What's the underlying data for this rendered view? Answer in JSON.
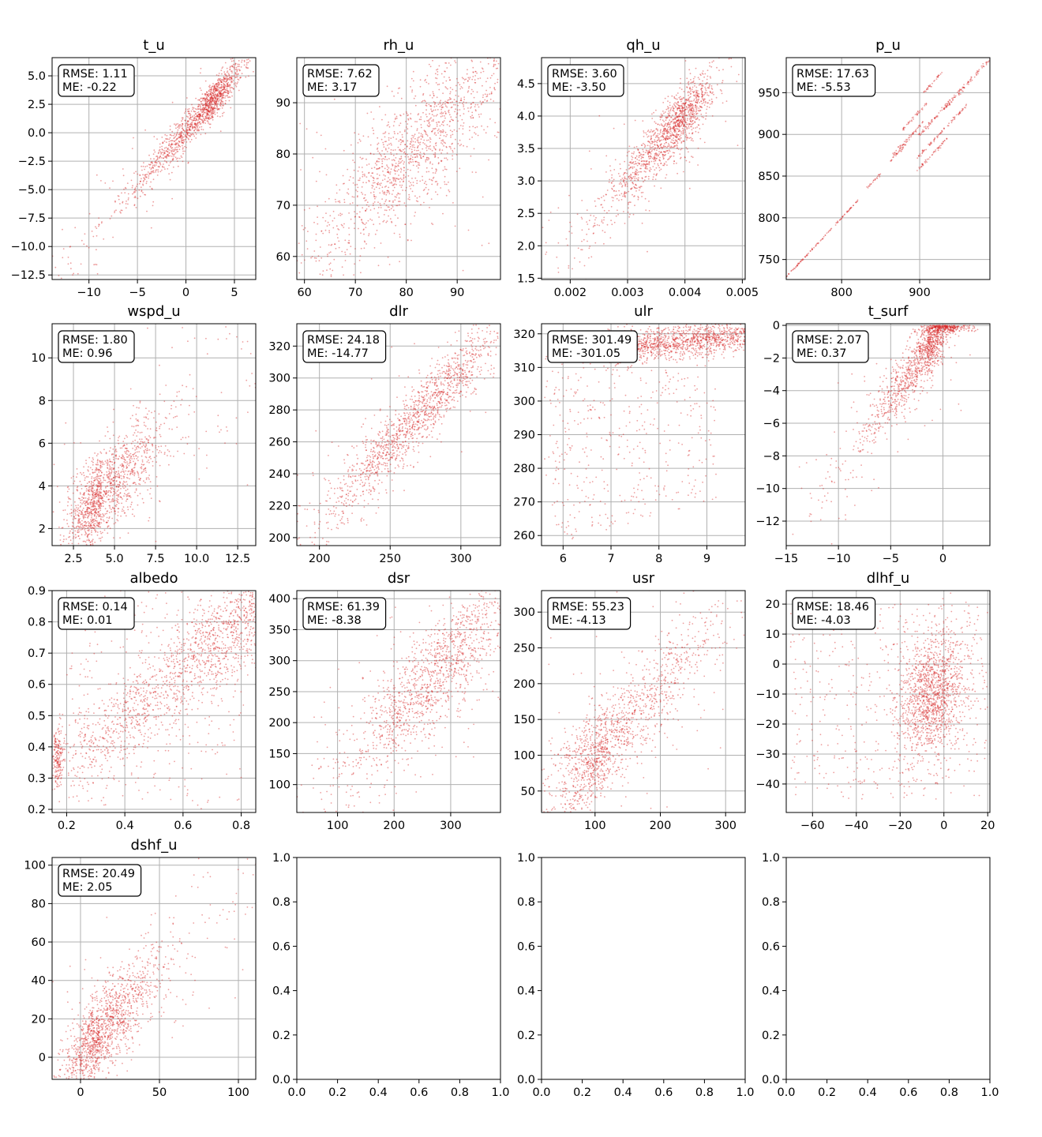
{
  "colors": {
    "points": "#d62728",
    "grid": "#b0b0b0",
    "frame": "#000000"
  },
  "chart_data": [
    {
      "type": "scatter",
      "title": "t_u",
      "grid": true,
      "xlim": [
        -13.8,
        7.2
      ],
      "ylim": [
        -12.9,
        6.6
      ],
      "xticks": [
        "-10",
        "-5",
        "0",
        "5"
      ],
      "xtick_values": [
        -10,
        -5,
        0,
        5
      ],
      "yticks": [
        "-12.5",
        "-10.0",
        "-7.5",
        "-5.0",
        "-2.5",
        "0.0",
        "2.5",
        "5.0"
      ],
      "ytick_values": [
        -12.5,
        -10,
        -7.5,
        -5,
        -2.5,
        0,
        2.5,
        5
      ],
      "rmse_label": "RMSE: 1.11",
      "me_label": "ME: -0.22",
      "points": {
        "slope": 0.95,
        "intercept": 0.2,
        "noise": 0.8,
        "x_center": 2.0,
        "x_spread": 3.5,
        "x_skew": "left"
      }
    },
    {
      "type": "scatter",
      "title": "rh_u",
      "grid": true,
      "xlim": [
        58.5,
        98.5
      ],
      "ylim": [
        55.5,
        98.8
      ],
      "xticks": [
        "60",
        "70",
        "80",
        "90"
      ],
      "xtick_values": [
        60,
        70,
        80,
        90
      ],
      "yticks": [
        "60",
        "70",
        "80",
        "90"
      ],
      "ytick_values": [
        60,
        70,
        80,
        90
      ],
      "rmse_label": "RMSE: 7.62",
      "me_label": "ME: 3.17",
      "points": {
        "slope": 0.95,
        "intercept": 3.5,
        "noise": 6.0,
        "x_center": 82,
        "x_spread": 10,
        "x_skew": "none"
      }
    },
    {
      "type": "scatter",
      "title": "qh_u",
      "grid": true,
      "xlim": [
        0.0015,
        0.00505
      ],
      "ylim": [
        1.48,
        4.9
      ],
      "xticks": [
        "0.002",
        "0.003",
        "0.004",
        "0.005"
      ],
      "xtick_values": [
        0.002,
        0.003,
        0.004,
        0.005
      ],
      "yticks": [
        "1.5",
        "2.0",
        "2.5",
        "3.0",
        "3.5",
        "4.0",
        "4.5"
      ],
      "ytick_values": [
        1.5,
        2,
        2.5,
        3,
        3.5,
        4,
        4.5
      ],
      "rmse_label": "RMSE: 3.60",
      "me_label": "ME: -3.50",
      "points": {
        "slope": 1000,
        "intercept": 0.0,
        "noise": 0.22,
        "x_center": 0.0038,
        "x_spread": 0.0006,
        "x_skew": "left"
      }
    },
    {
      "type": "scatter",
      "title": "p_u",
      "grid": true,
      "xlim": [
        729,
        990
      ],
      "ylim": [
        726,
        992
      ],
      "xticks": [
        "800",
        "900"
      ],
      "xtick_values": [
        800,
        900
      ],
      "yticks": [
        "750",
        "800",
        "850",
        "900",
        "950"
      ],
      "ytick_values": [
        750,
        800,
        850,
        900,
        950
      ],
      "rmse_label": "RMSE: 17.63",
      "me_label": "ME: -5.53",
      "points": {
        "mode": "segments",
        "segments": [
          [
            729,
            822,
            0,
            0.5
          ],
          [
            832,
            850,
            3,
            0.8
          ],
          [
            860,
            885,
            6,
            1
          ],
          [
            865,
            905,
            10,
            1.2
          ],
          [
            878,
            910,
            28,
            1
          ],
          [
            905,
            930,
            45,
            1
          ],
          [
            898,
            960,
            0,
            1.5
          ],
          [
            930,
            990,
            0,
            1.5
          ],
          [
            895,
            935,
            -40,
            1
          ],
          [
            895,
            960,
            -25,
            1
          ]
        ]
      }
    },
    {
      "type": "scatter",
      "title": "wspd_u",
      "grid": true,
      "xlim": [
        1.2,
        13.6
      ],
      "ylim": [
        1.2,
        11.6
      ],
      "xticks": [
        "2.5",
        "5.0",
        "7.5",
        "10.0",
        "12.5"
      ],
      "xtick_values": [
        2.5,
        5,
        7.5,
        10,
        12.5
      ],
      "yticks": [
        "2",
        "4",
        "6",
        "8",
        "10"
      ],
      "ytick_values": [
        2,
        4,
        6,
        8,
        10
      ],
      "rmse_label": "RMSE: 1.80",
      "me_label": "ME: 0.96",
      "points": {
        "slope": 0.72,
        "intercept": 0.5,
        "noise": 1.0,
        "x_center": 4.2,
        "x_spread": 1.9,
        "x_skew": "right"
      }
    },
    {
      "type": "scatter",
      "title": "dlr",
      "grid": true,
      "xlim": [
        184,
        328
      ],
      "ylim": [
        195,
        334
      ],
      "xticks": [
        "200",
        "250",
        "300"
      ],
      "xtick_values": [
        200,
        250,
        300
      ],
      "yticks": [
        "200",
        "220",
        "240",
        "260",
        "280",
        "300",
        "320"
      ],
      "ytick_values": [
        200,
        220,
        240,
        260,
        280,
        300,
        320
      ],
      "rmse_label": "RMSE: 24.18",
      "me_label": "ME: -14.77",
      "points": {
        "slope": 0.95,
        "intercept": 20,
        "noise": 10,
        "x_center": 270,
        "x_spread": 32,
        "x_skew": "none"
      }
    },
    {
      "type": "scatter",
      "title": "ulr",
      "grid": true,
      "xlim": [
        5.55,
        9.8
      ],
      "ylim": [
        257,
        323
      ],
      "xticks": [
        "6",
        "7",
        "8",
        "9"
      ],
      "xtick_values": [
        6,
        7,
        8,
        9
      ],
      "yticks": [
        "260",
        "270",
        "280",
        "290",
        "300",
        "310",
        "320"
      ],
      "ytick_values": [
        260,
        270,
        280,
        290,
        300,
        310,
        320
      ],
      "rmse_label": "RMSE: 301.49",
      "me_label": "ME: -301.05",
      "points": {
        "mode": "ulr"
      }
    },
    {
      "type": "scatter",
      "title": "t_surf",
      "grid": true,
      "xlim": [
        -15,
        4.5
      ],
      "ylim": [
        -13.5,
        0.1
      ],
      "xticks": [
        "-15",
        "-10",
        "-5",
        "0"
      ],
      "xtick_values": [
        -15,
        -10,
        -5,
        0
      ],
      "yticks": [
        "-12",
        "-10",
        "-8",
        "-6",
        "-4",
        "-2",
        "0"
      ],
      "ytick_values": [
        -12,
        -10,
        -8,
        -6,
        -4,
        -2,
        0
      ],
      "rmse_label": "RMSE: 2.07",
      "me_label": "ME: 0.37",
      "points": {
        "slope": 0.9,
        "intercept": 0.0,
        "noise": 0.9,
        "x_center": -1.5,
        "x_spread": 2.8,
        "x_skew": "left",
        "y_cap": 0
      }
    },
    {
      "type": "scatter",
      "title": "albedo",
      "grid": true,
      "xlim": [
        0.15,
        0.85
      ],
      "ylim": [
        0.19,
        0.9
      ],
      "xticks": [
        "0.2",
        "0.4",
        "0.6",
        "0.8"
      ],
      "xtick_values": [
        0.2,
        0.4,
        0.6,
        0.8
      ],
      "yticks": [
        "0.2",
        "0.3",
        "0.4",
        "0.5",
        "0.6",
        "0.7",
        "0.8",
        "0.9"
      ],
      "ytick_values": [
        0.2,
        0.3,
        0.4,
        0.5,
        0.6,
        0.7,
        0.8,
        0.9
      ],
      "rmse_label": "RMSE: 0.14",
      "me_label": "ME: 0.01",
      "points": {
        "mode": "albedo"
      }
    },
    {
      "type": "scatter",
      "title": "dsr",
      "grid": true,
      "xlim": [
        28,
        388
      ],
      "ylim": [
        55,
        413
      ],
      "xticks": [
        "100",
        "200",
        "300"
      ],
      "xtick_values": [
        100,
        200,
        300
      ],
      "yticks": [
        "100",
        "150",
        "200",
        "250",
        "300",
        "350",
        "400"
      ],
      "ytick_values": [
        100,
        150,
        200,
        250,
        300,
        350,
        400
      ],
      "rmse_label": "RMSE: 61.39",
      "me_label": "ME: -8.38",
      "points": {
        "slope": 0.95,
        "intercept": 15,
        "noise": 45,
        "x_center": 270,
        "x_spread": 80,
        "x_skew": "none"
      }
    },
    {
      "type": "scatter",
      "title": "usr",
      "grid": true,
      "xlim": [
        18,
        330
      ],
      "ylim": [
        20,
        330
      ],
      "xticks": [
        "100",
        "200",
        "300"
      ],
      "xtick_values": [
        100,
        200,
        300
      ],
      "yticks": [
        "50",
        "100",
        "150",
        "200",
        "250",
        "300"
      ],
      "ytick_values": [
        50,
        100,
        150,
        200,
        250,
        300
      ],
      "rmse_label": "RMSE: 55.23",
      "me_label": "ME: -4.13",
      "points": {
        "slope": 0.95,
        "intercept": 5,
        "noise": 35,
        "x_center": 120,
        "x_spread": 80,
        "x_skew": "right"
      }
    },
    {
      "type": "scatter",
      "title": "dlhf_u",
      "grid": true,
      "xlim": [
        -72,
        21
      ],
      "ylim": [
        -49.5,
        24.5
      ],
      "xticks": [
        "-60",
        "-40",
        "-20",
        "0",
        "20"
      ],
      "xtick_values": [
        -60,
        -40,
        -20,
        0,
        20
      ],
      "yticks": [
        "-40",
        "-30",
        "-20",
        "-10",
        "0",
        "10",
        "20"
      ],
      "ytick_values": [
        -40,
        -30,
        -20,
        -10,
        0,
        10,
        20
      ],
      "rmse_label": "RMSE: 18.46",
      "me_label": "ME: -4.03",
      "points": {
        "mode": "dlhf"
      }
    },
    {
      "type": "scatter",
      "title": "dshf_u",
      "grid": true,
      "xlim": [
        -18,
        111
      ],
      "ylim": [
        -11.5,
        104
      ],
      "xticks": [
        "0",
        "50",
        "100"
      ],
      "xtick_values": [
        0,
        50,
        100
      ],
      "yticks": [
        "0",
        "20",
        "40",
        "60",
        "80",
        "100"
      ],
      "ytick_values": [
        0,
        20,
        40,
        60,
        80,
        100
      ],
      "rmse_label": "RMSE: 20.49",
      "me_label": "ME: 2.05",
      "points": {
        "slope": 0.9,
        "intercept": 1,
        "noise": 11,
        "x_center": 12,
        "x_spread": 20,
        "x_skew": "right"
      }
    },
    {
      "type": "scatter",
      "title": "",
      "grid": false,
      "empty": true,
      "xlim": [
        0,
        1
      ],
      "ylim": [
        0,
        1
      ],
      "xticks": [
        "0.0",
        "0.2",
        "0.4",
        "0.6",
        "0.8",
        "1.0"
      ],
      "xtick_values": [
        0,
        0.2,
        0.4,
        0.6,
        0.8,
        1
      ],
      "yticks": [
        "0.0",
        "0.2",
        "0.4",
        "0.6",
        "0.8",
        "1.0"
      ],
      "ytick_values": [
        0,
        0.2,
        0.4,
        0.6,
        0.8,
        1
      ]
    },
    {
      "type": "scatter",
      "title": "",
      "grid": false,
      "empty": true,
      "xlim": [
        0,
        1
      ],
      "ylim": [
        0,
        1
      ],
      "xticks": [
        "0.0",
        "0.2",
        "0.4",
        "0.6",
        "0.8",
        "1.0"
      ],
      "xtick_values": [
        0,
        0.2,
        0.4,
        0.6,
        0.8,
        1
      ],
      "yticks": [
        "0.0",
        "0.2",
        "0.4",
        "0.6",
        "0.8",
        "1.0"
      ],
      "ytick_values": [
        0,
        0.2,
        0.4,
        0.6,
        0.8,
        1
      ]
    },
    {
      "type": "scatter",
      "title": "",
      "grid": false,
      "empty": true,
      "xlim": [
        0,
        1
      ],
      "ylim": [
        0,
        1
      ],
      "xticks": [
        "0.0",
        "0.2",
        "0.4",
        "0.6",
        "0.8",
        "1.0"
      ],
      "xtick_values": [
        0,
        0.2,
        0.4,
        0.6,
        0.8,
        1
      ],
      "yticks": [
        "0.0",
        "0.2",
        "0.4",
        "0.6",
        "0.8",
        "1.0"
      ],
      "ytick_values": [
        0,
        0.2,
        0.4,
        0.6,
        0.8,
        1
      ]
    }
  ]
}
